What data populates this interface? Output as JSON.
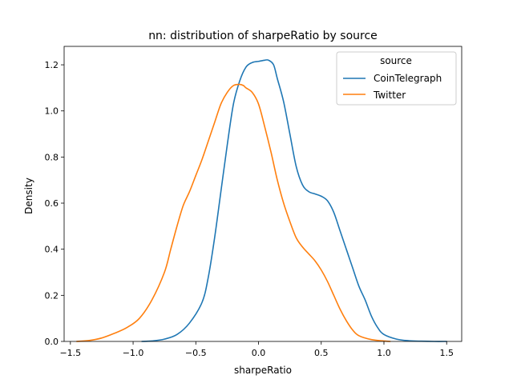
{
  "chart_data": {
    "type": "line",
    "title": "nn: distribution of sharpeRatio by source",
    "xlabel": "sharpeRatio",
    "ylabel": "Density",
    "xlim": [
      -1.55,
      1.62
    ],
    "ylim": [
      0,
      1.28
    ],
    "xticks": [
      -1.5,
      -1.0,
      -0.5,
      0.0,
      0.5,
      1.0,
      1.5
    ],
    "xtick_labels": [
      "−1.5",
      "−1.0",
      "−0.5",
      "0.0",
      "0.5",
      "1.0",
      "1.5"
    ],
    "yticks": [
      0.0,
      0.2,
      0.4,
      0.6,
      0.8,
      1.0,
      1.2
    ],
    "ytick_labels": [
      "0.0",
      "0.2",
      "0.4",
      "0.6",
      "0.8",
      "1.0",
      "1.2"
    ],
    "grid": false,
    "legend": {
      "title": "source",
      "placement": "top-right"
    },
    "series": [
      {
        "name": "CoinTelegraph",
        "color": "#1f77b4",
        "x": [
          -0.93,
          -0.85,
          -0.75,
          -0.65,
          -0.55,
          -0.45,
          -0.4,
          -0.35,
          -0.3,
          -0.25,
          -0.2,
          -0.15,
          -0.1,
          -0.05,
          0.0,
          0.05,
          0.08,
          0.12,
          0.15,
          0.2,
          0.25,
          0.3,
          0.35,
          0.4,
          0.45,
          0.5,
          0.55,
          0.6,
          0.65,
          0.7,
          0.75,
          0.8,
          0.85,
          0.9,
          0.95,
          1.0,
          1.1,
          1.2,
          1.3,
          1.4,
          1.5
        ],
        "y": [
          0.0,
          0.002,
          0.01,
          0.03,
          0.08,
          0.17,
          0.28,
          0.45,
          0.65,
          0.85,
          1.03,
          1.13,
          1.19,
          1.21,
          1.215,
          1.22,
          1.22,
          1.2,
          1.14,
          1.04,
          0.9,
          0.76,
          0.68,
          0.65,
          0.64,
          0.63,
          0.61,
          0.56,
          0.48,
          0.4,
          0.32,
          0.24,
          0.18,
          0.11,
          0.06,
          0.03,
          0.01,
          0.003,
          0.001,
          0.0,
          0.0
        ]
      },
      {
        "name": "Twitter",
        "color": "#ff7f0e",
        "x": [
          -1.45,
          -1.35,
          -1.25,
          -1.15,
          -1.05,
          -0.95,
          -0.85,
          -0.75,
          -0.7,
          -0.65,
          -0.6,
          -0.55,
          -0.5,
          -0.45,
          -0.4,
          -0.35,
          -0.3,
          -0.25,
          -0.2,
          -0.15,
          -0.12,
          -0.1,
          -0.05,
          0.0,
          0.05,
          0.1,
          0.15,
          0.2,
          0.25,
          0.3,
          0.35,
          0.4,
          0.45,
          0.5,
          0.55,
          0.6,
          0.65,
          0.7,
          0.75,
          0.8,
          0.9,
          1.0,
          1.05
        ],
        "y": [
          0.0,
          0.004,
          0.015,
          0.035,
          0.06,
          0.1,
          0.18,
          0.3,
          0.4,
          0.5,
          0.59,
          0.65,
          0.72,
          0.79,
          0.87,
          0.95,
          1.03,
          1.08,
          1.11,
          1.115,
          1.11,
          1.1,
          1.08,
          1.03,
          0.93,
          0.82,
          0.7,
          0.6,
          0.52,
          0.45,
          0.41,
          0.38,
          0.35,
          0.31,
          0.26,
          0.2,
          0.14,
          0.09,
          0.05,
          0.025,
          0.008,
          0.002,
          0.0
        ]
      }
    ]
  }
}
